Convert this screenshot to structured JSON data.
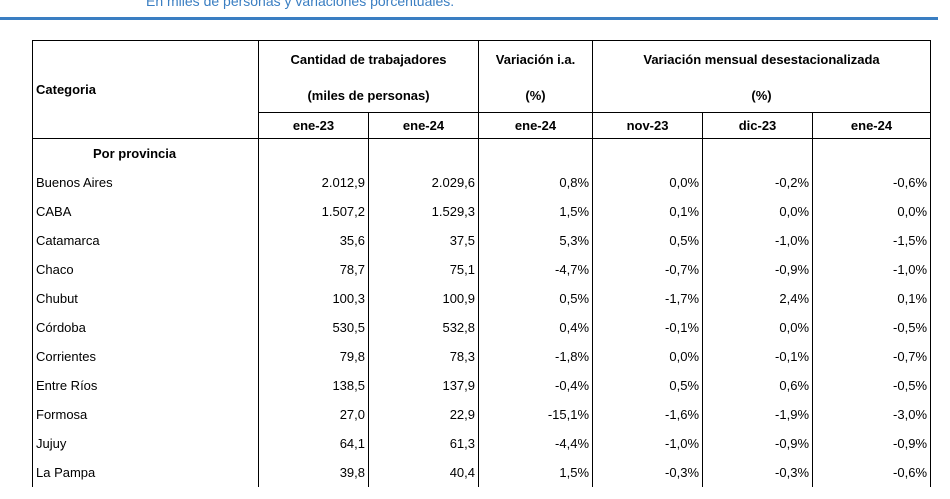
{
  "subtitle": "En miles de personas y variaciones porcentuales.",
  "table": {
    "header": {
      "category": "Categoria",
      "workers": "Cantidad de trabajadores",
      "workers_unit": "(miles de personas)",
      "yoy": "Variación i.a.",
      "yoy_unit": "(%)",
      "monthly": "Variación mensual desestacionalizada",
      "monthly_unit": "(%)",
      "periods": [
        "ene-23",
        "ene-24",
        "ene-24",
        "nov-23",
        "dic-23",
        "ene-24"
      ]
    },
    "section": "Por provincia",
    "rows": [
      [
        "Buenos Aires",
        "2.012,9",
        "2.029,6",
        "0,8%",
        "0,0%",
        "-0,2%",
        "-0,6%"
      ],
      [
        "CABA",
        "1.507,2",
        "1.529,3",
        "1,5%",
        "0,1%",
        "0,0%",
        "0,0%"
      ],
      [
        "Catamarca",
        "35,6",
        "37,5",
        "5,3%",
        "0,5%",
        "-1,0%",
        "-1,5%"
      ],
      [
        "Chaco",
        "78,7",
        "75,1",
        "-4,7%",
        "-0,7%",
        "-0,9%",
        "-1,0%"
      ],
      [
        "Chubut",
        "100,3",
        "100,9",
        "0,5%",
        "-1,7%",
        "2,4%",
        "0,1%"
      ],
      [
        "Córdoba",
        "530,5",
        "532,8",
        "0,4%",
        "-0,1%",
        "0,0%",
        "-0,5%"
      ],
      [
        "Corrientes",
        "79,8",
        "78,3",
        "-1,8%",
        "0,0%",
        "-0,1%",
        "-0,7%"
      ],
      [
        "Entre Ríos",
        "138,5",
        "137,9",
        "-0,4%",
        "0,5%",
        "0,6%",
        "-0,5%"
      ],
      [
        "Formosa",
        "27,0",
        "22,9",
        "-15,1%",
        "-1,6%",
        "-1,9%",
        "-3,0%"
      ],
      [
        "Jujuy",
        "64,1",
        "61,3",
        "-4,4%",
        "-1,0%",
        "-0,9%",
        "-0,9%"
      ],
      [
        "La Pampa",
        "39,8",
        "40,4",
        "1,5%",
        "-0,3%",
        "-0,3%",
        "-0,6%"
      ]
    ]
  }
}
